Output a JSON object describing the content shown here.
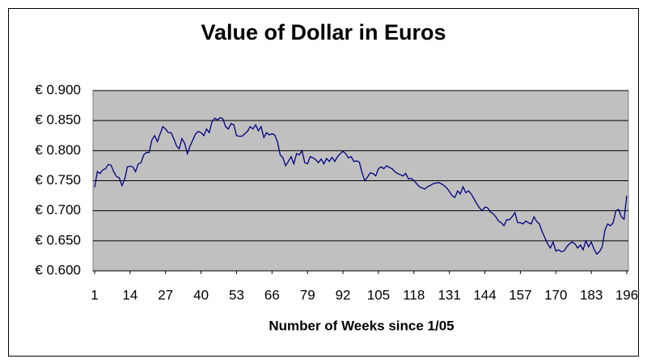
{
  "chart_data": {
    "type": "line",
    "title": "Value of Dollar in Euros",
    "x_label": "Number of Weeks since 1/05",
    "x": [
      1,
      2,
      3,
      4,
      5,
      6,
      7,
      8,
      9,
      10,
      11,
      12,
      13,
      14,
      15,
      16,
      17,
      18,
      19,
      20,
      21,
      22,
      23,
      24,
      25,
      26,
      27,
      28,
      29,
      30,
      31,
      32,
      33,
      34,
      35,
      36,
      37,
      38,
      39,
      40,
      41,
      42,
      43,
      44,
      45,
      46,
      47,
      48,
      49,
      50,
      51,
      52,
      53,
      54,
      55,
      56,
      57,
      58,
      59,
      60,
      61,
      62,
      63,
      64,
      65,
      66,
      67,
      68,
      69,
      70,
      71,
      72,
      73,
      74,
      75,
      76,
      77,
      78,
      79,
      80,
      81,
      82,
      83,
      84,
      85,
      86,
      87,
      88,
      89,
      90,
      91,
      92,
      93,
      94,
      95,
      96,
      97,
      98,
      99,
      100,
      101,
      102,
      103,
      104,
      105,
      106,
      107,
      108,
      109,
      110,
      111,
      112,
      113,
      114,
      115,
      116,
      117,
      118,
      119,
      120,
      121,
      122,
      123,
      124,
      125,
      126,
      127,
      128,
      129,
      130,
      131,
      132,
      133,
      134,
      135,
      136,
      137,
      138,
      139,
      140,
      141,
      142,
      143,
      144,
      145,
      146,
      147,
      148,
      149,
      150,
      151,
      152,
      153,
      154,
      155,
      156,
      157,
      158,
      159,
      160,
      161,
      162,
      163,
      164,
      165,
      166,
      167,
      168,
      169,
      170,
      171,
      172,
      173,
      174,
      175,
      176,
      177,
      178,
      179,
      180,
      181,
      182,
      183,
      184,
      185,
      186,
      187,
      188,
      189,
      190,
      191,
      192,
      193,
      194,
      195,
      196
    ],
    "values": [
      0.739,
      0.765,
      0.762,
      0.768,
      0.77,
      0.777,
      0.776,
      0.765,
      0.757,
      0.755,
      0.742,
      0.752,
      0.773,
      0.774,
      0.773,
      0.765,
      0.778,
      0.78,
      0.793,
      0.797,
      0.797,
      0.818,
      0.825,
      0.815,
      0.828,
      0.84,
      0.836,
      0.83,
      0.83,
      0.82,
      0.808,
      0.803,
      0.82,
      0.812,
      0.795,
      0.808,
      0.818,
      0.828,
      0.832,
      0.83,
      0.825,
      0.836,
      0.83,
      0.848,
      0.854,
      0.851,
      0.855,
      0.853,
      0.84,
      0.836,
      0.845,
      0.843,
      0.825,
      0.824,
      0.824,
      0.828,
      0.832,
      0.84,
      0.836,
      0.843,
      0.833,
      0.84,
      0.822,
      0.83,
      0.826,
      0.828,
      0.826,
      0.815,
      0.793,
      0.788,
      0.775,
      0.782,
      0.79,
      0.778,
      0.795,
      0.793,
      0.8,
      0.78,
      0.778,
      0.79,
      0.788,
      0.785,
      0.78,
      0.786,
      0.778,
      0.787,
      0.782,
      0.789,
      0.782,
      0.79,
      0.795,
      0.799,
      0.795,
      0.788,
      0.79,
      0.782,
      0.783,
      0.781,
      0.763,
      0.75,
      0.756,
      0.763,
      0.762,
      0.758,
      0.77,
      0.773,
      0.77,
      0.775,
      0.772,
      0.77,
      0.765,
      0.762,
      0.76,
      0.758,
      0.762,
      0.753,
      0.754,
      0.75,
      0.745,
      0.74,
      0.738,
      0.736,
      0.74,
      0.742,
      0.745,
      0.746,
      0.747,
      0.745,
      0.742,
      0.738,
      0.732,
      0.725,
      0.722,
      0.733,
      0.728,
      0.74,
      0.73,
      0.733,
      0.728,
      0.72,
      0.712,
      0.705,
      0.7,
      0.706,
      0.705,
      0.698,
      0.695,
      0.69,
      0.683,
      0.68,
      0.675,
      0.685,
      0.685,
      0.69,
      0.697,
      0.68,
      0.68,
      0.678,
      0.683,
      0.68,
      0.678,
      0.69,
      0.682,
      0.678,
      0.665,
      0.655,
      0.645,
      0.638,
      0.648,
      0.633,
      0.635,
      0.632,
      0.633,
      0.64,
      0.645,
      0.648,
      0.645,
      0.638,
      0.643,
      0.635,
      0.65,
      0.64,
      0.648,
      0.636,
      0.628,
      0.632,
      0.64,
      0.668,
      0.678,
      0.675,
      0.68,
      0.7,
      0.702,
      0.69,
      0.686,
      0.725
    ],
    "color": "#000080",
    "xlim": [
      1,
      196
    ],
    "xticks": [
      1,
      14,
      27,
      40,
      53,
      66,
      79,
      92,
      105,
      118,
      131,
      144,
      157,
      170,
      183,
      196
    ],
    "ylim": [
      0.6,
      0.9
    ],
    "yticks": [
      {
        "value": 0.6,
        "label": "€ 0.600"
      },
      {
        "value": 0.65,
        "label": "€ 0.650"
      },
      {
        "value": 0.7,
        "label": "€ 0.700"
      },
      {
        "value": 0.75,
        "label": "€ 0.750"
      },
      {
        "value": 0.8,
        "label": "€ 0.800"
      },
      {
        "value": 0.85,
        "label": "€ 0.850"
      },
      {
        "value": 0.9,
        "label": "€ 0.900"
      }
    ],
    "grid": true
  }
}
